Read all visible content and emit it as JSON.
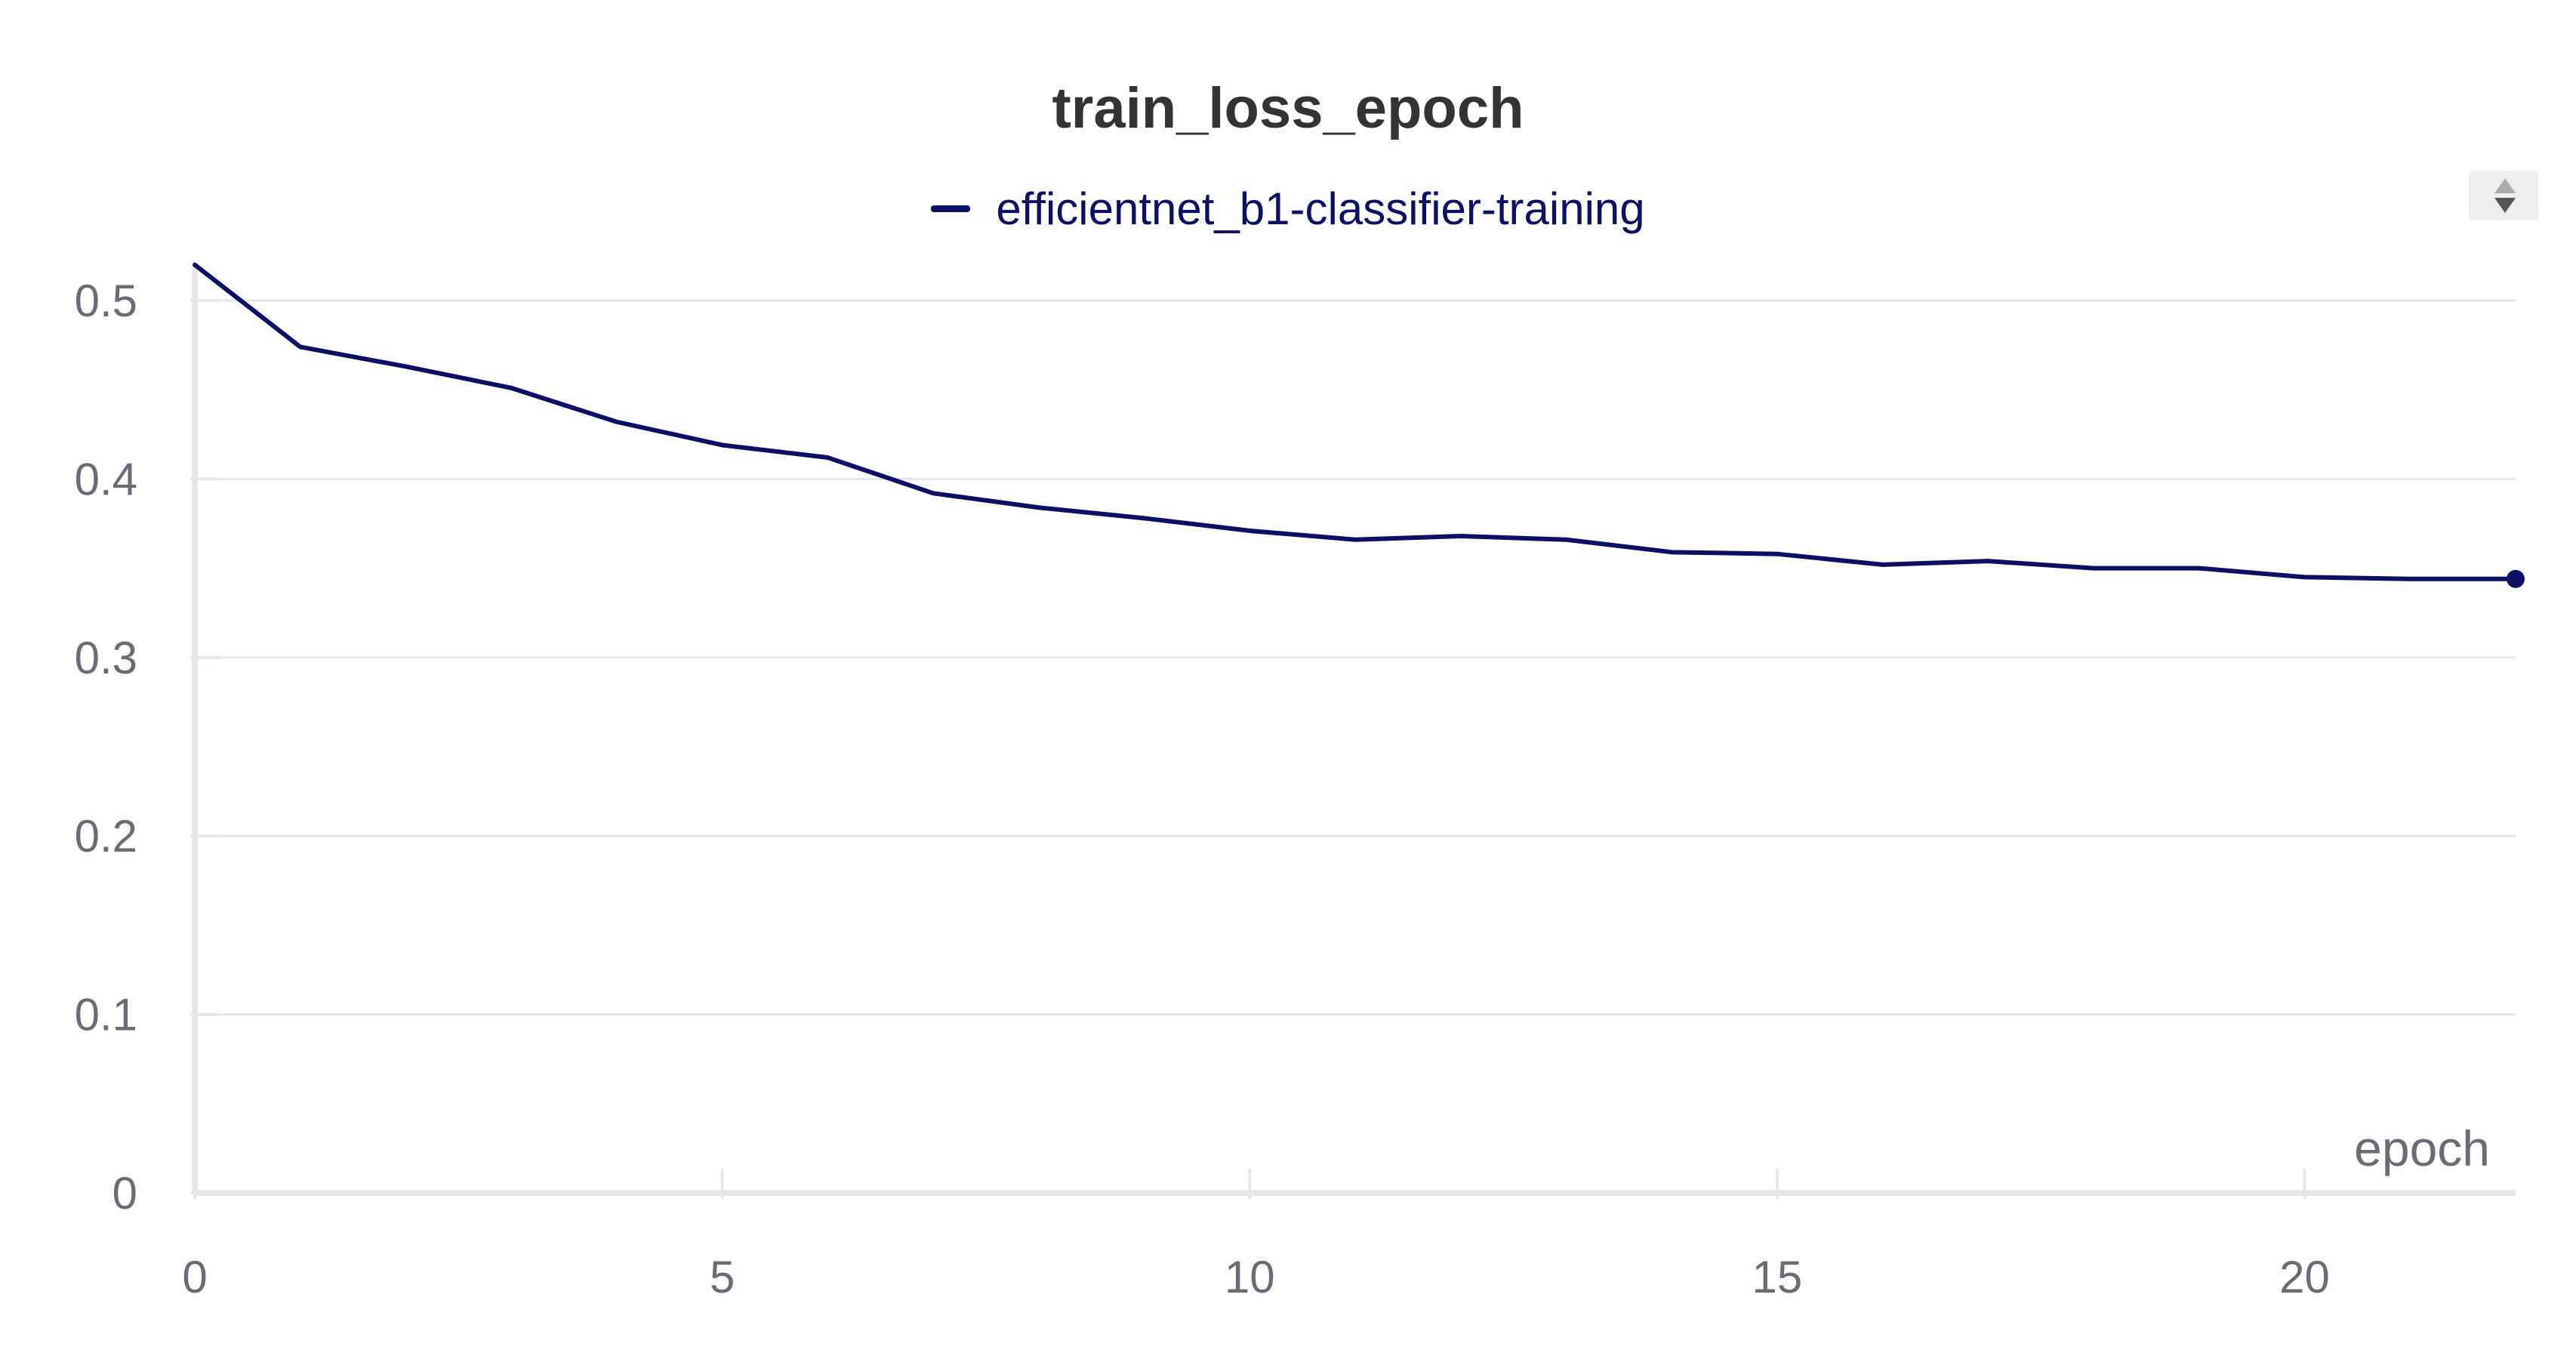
{
  "chart_data": {
    "type": "line",
    "title": "train_loss_epoch",
    "xlabel": "epoch",
    "ylabel": "",
    "xlim": [
      0,
      22
    ],
    "ylim": [
      0,
      0.52
    ],
    "x_ticks": [
      0,
      5,
      10,
      15,
      20
    ],
    "y_ticks": [
      0,
      0.1,
      0.2,
      0.3,
      0.4,
      0.5
    ],
    "x_tick_labels": [
      "0",
      "5",
      "10",
      "15",
      "20"
    ],
    "y_tick_labels": [
      "0",
      "0.1",
      "0.2",
      "0.3",
      "0.4",
      "0.5"
    ],
    "grid": true,
    "legend_position": "top-center",
    "series": [
      {
        "name": "efficientnet_b1-classifier-training",
        "color": "#0b0f66",
        "x": [
          0,
          1,
          2,
          3,
          4,
          5,
          6,
          7,
          8,
          9,
          10,
          11,
          12,
          13,
          14,
          15,
          16,
          17,
          18,
          19,
          20,
          21,
          22
        ],
        "y": [
          0.52,
          0.474,
          0.463,
          0.451,
          0.432,
          0.419,
          0.412,
          0.392,
          0.384,
          0.378,
          0.371,
          0.366,
          0.368,
          0.366,
          0.359,
          0.358,
          0.352,
          0.354,
          0.35,
          0.35,
          0.345,
          0.344,
          0.344
        ]
      }
    ]
  }
}
